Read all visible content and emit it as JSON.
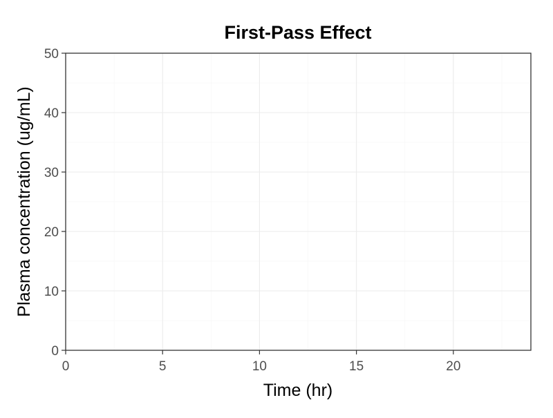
{
  "chart_data": {
    "type": "line",
    "title": "First-Pass Effect",
    "xlabel": "Time (hr)",
    "ylabel": "Plasma concentration (ug/mL)",
    "xlim": [
      0,
      24
    ],
    "ylim": [
      0,
      50
    ],
    "x_ticks": [
      "0",
      "5",
      "10",
      "15",
      "20"
    ],
    "y_ticks": [
      "0",
      "10",
      "20",
      "30",
      "40",
      "50"
    ],
    "x_tick_values": [
      0,
      5,
      10,
      15,
      20
    ],
    "y_tick_values": [
      0,
      10,
      20,
      30,
      40,
      50
    ],
    "grid": true,
    "series": []
  },
  "colors": {
    "panel_border": "#333333",
    "grid_major": "#ebebeb",
    "grid_minor": "#f5f5f5",
    "tick_text": "#4d4d4d",
    "text": "#000000"
  }
}
